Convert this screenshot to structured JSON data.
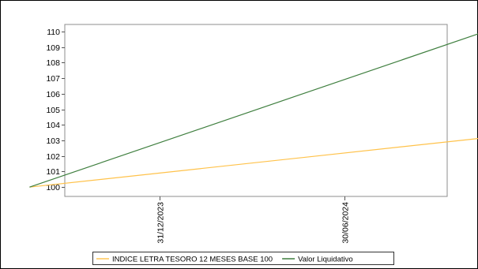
{
  "chart_data": {
    "type": "line",
    "title": "",
    "xlabel": "",
    "ylabel": "",
    "x_tick_labels": [
      "31/12/2023",
      "30/06/2024"
    ],
    "x": [
      "2023-08-25",
      "2024-11-20"
    ],
    "y_ticks": [
      100,
      101,
      102,
      103,
      104,
      105,
      106,
      107,
      108,
      109,
      110
    ],
    "ylim": [
      99.4,
      110.45
    ],
    "grid": false,
    "legend_position": "bottom",
    "series": [
      {
        "name": "INDICE LETRA TESORO 12 MESES BASE 100",
        "color": "#FFC24A",
        "values": [
          100,
          103.2
        ]
      },
      {
        "name": "Valor Liquidativo",
        "color": "#3F7F3F",
        "values": [
          100,
          110.1
        ]
      }
    ]
  }
}
